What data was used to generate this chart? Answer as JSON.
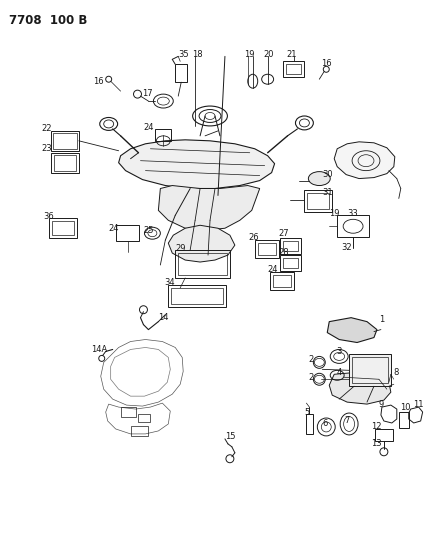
{
  "title": "7708  100 B",
  "bg_color": "#ffffff",
  "fig_width": 4.28,
  "fig_height": 5.33,
  "dpi": 100,
  "line_color": "#1a1a1a"
}
